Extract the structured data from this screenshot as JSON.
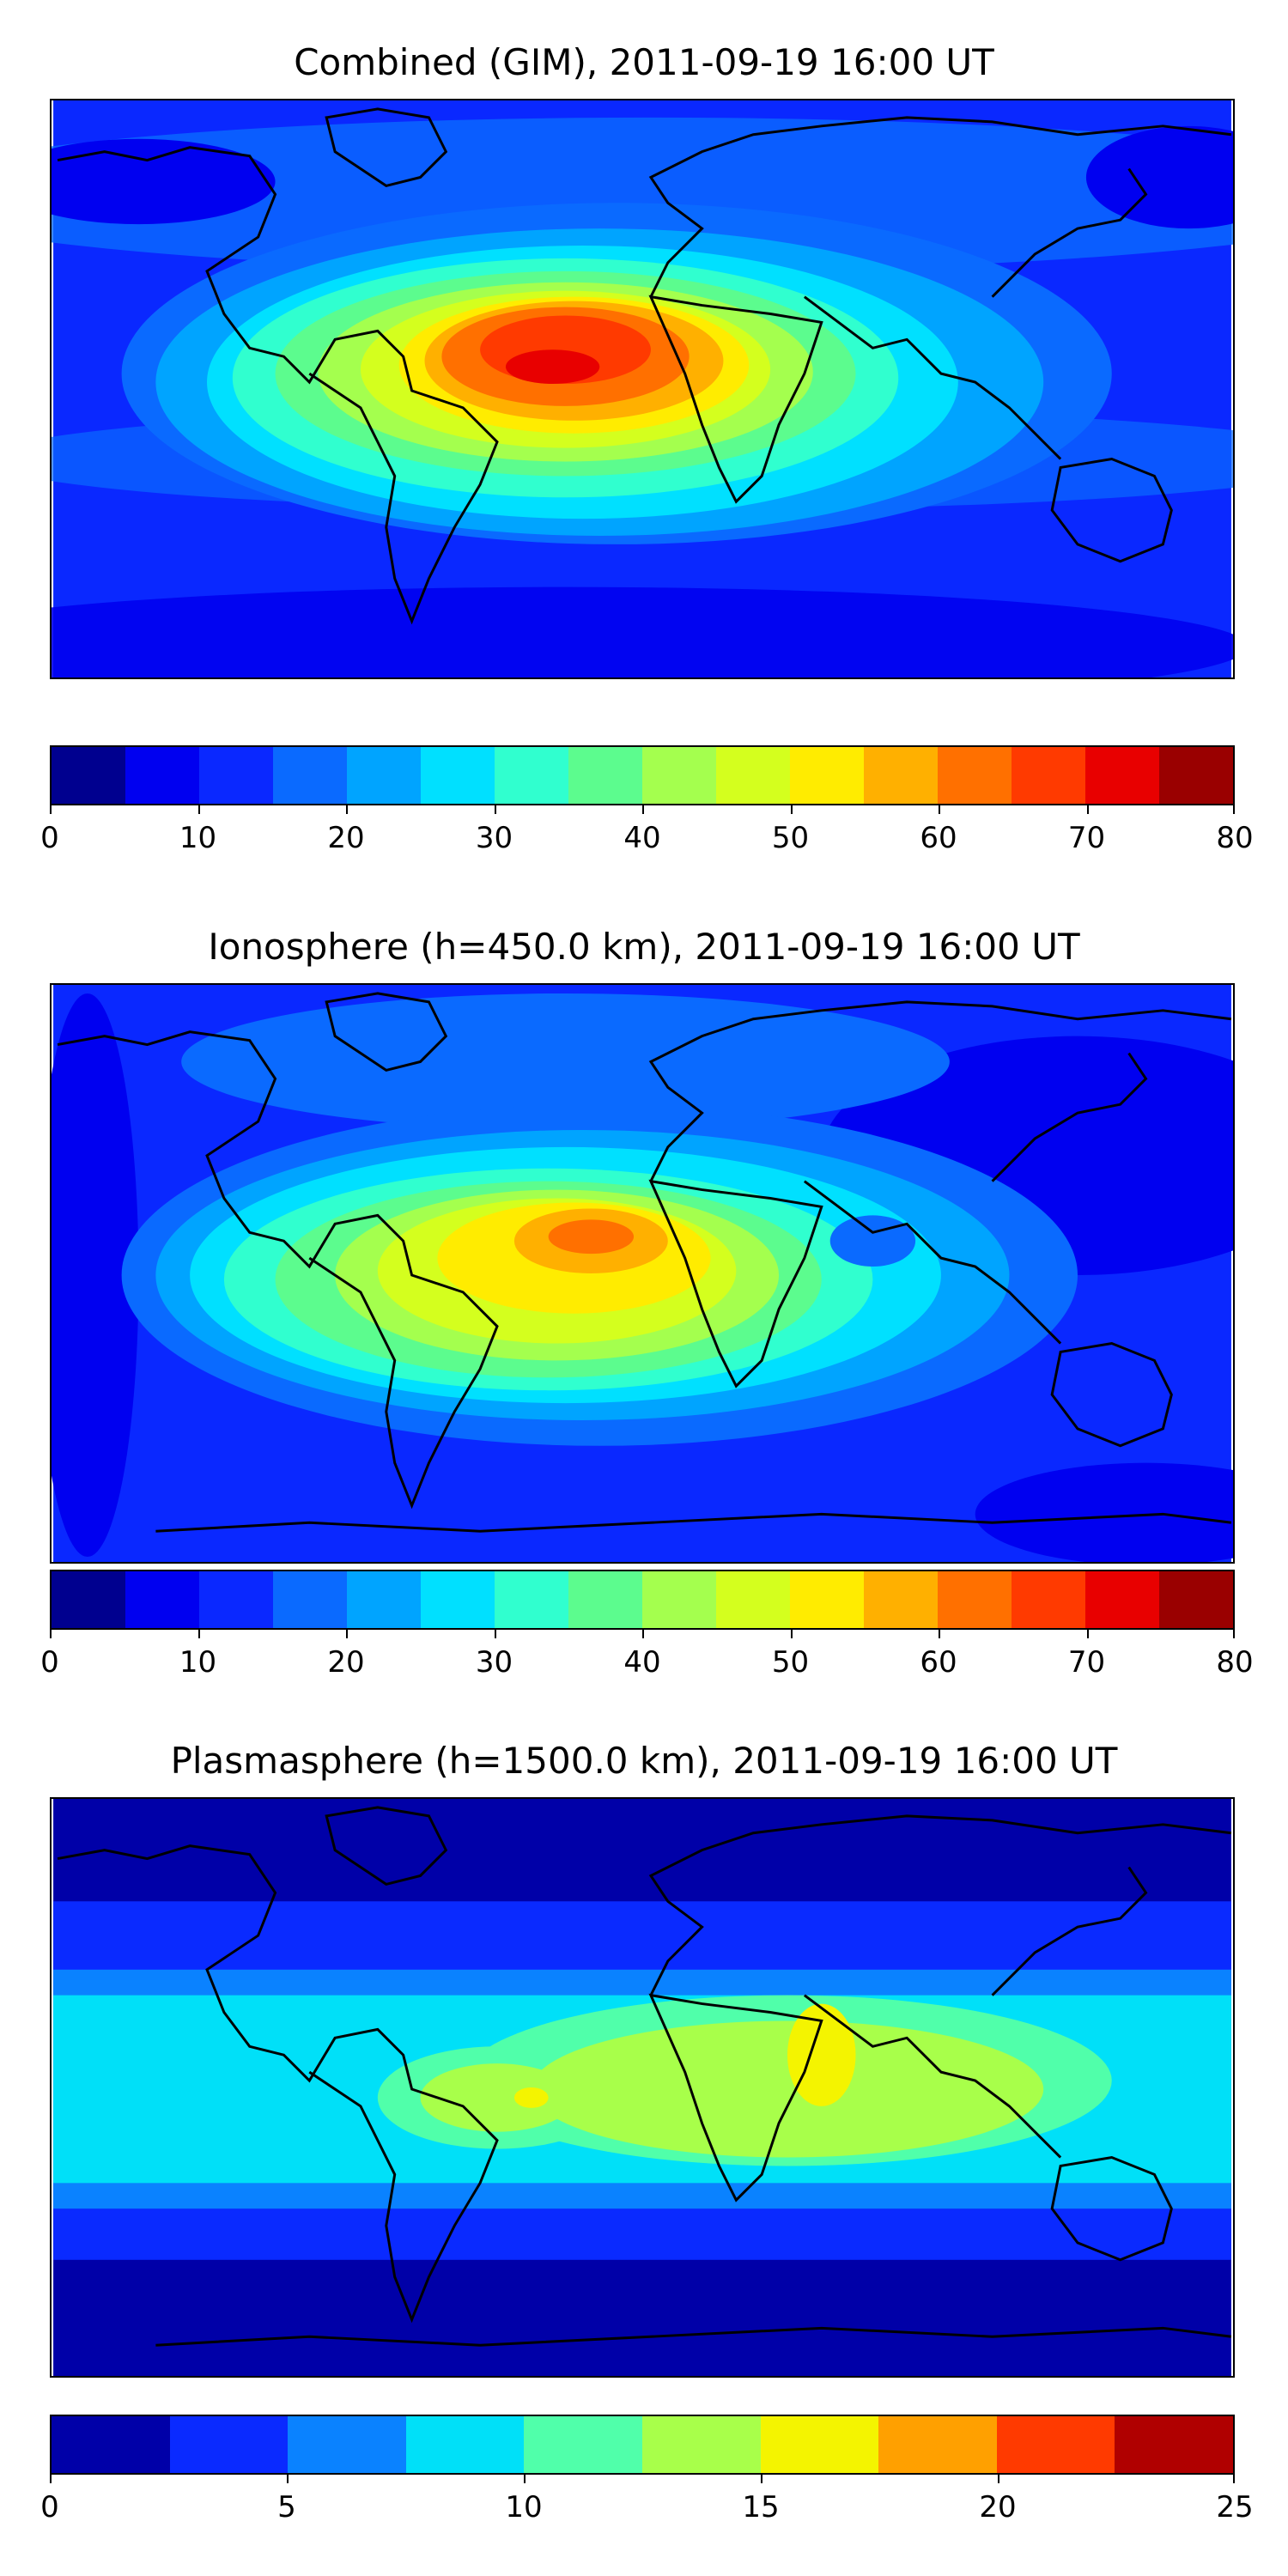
{
  "panels": [
    {
      "id": "combined",
      "title": "Combined (GIM), 2011-09-19 16:00 UT",
      "map": {
        "lon_range": [
          -180,
          180
        ],
        "lat_range": [
          -90,
          90
        ],
        "colorbar_range": [
          0,
          80
        ]
      },
      "colorbar": {
        "min": 0,
        "max": 80,
        "tick_values": [
          0,
          10,
          20,
          30,
          40,
          50,
          60,
          70,
          80
        ],
        "tick_labels": [
          "0",
          "10",
          "20",
          "30",
          "40",
          "50",
          "60",
          "70",
          "80"
        ],
        "colors": [
          "#00008f",
          "#0000f0",
          "#0a28ff",
          "#0a6aff",
          "#00a4ff",
          "#00e0ff",
          "#30ffcf",
          "#5cfc8e",
          "#a4ff4e",
          "#d4ff1e",
          "#ffec00",
          "#ffb000",
          "#ff7000",
          "#ff3a00",
          "#e80000",
          "#9a0000"
        ]
      }
    },
    {
      "id": "ionosphere",
      "title": "Ionosphere  (h=450.0 km), 2011-09-19 16:00 UT",
      "map": {
        "lon_range": [
          -180,
          180
        ],
        "lat_range": [
          -90,
          90
        ],
        "colorbar_range": [
          0,
          80
        ]
      },
      "colorbar": {
        "min": 0,
        "max": 80,
        "tick_values": [
          0,
          10,
          20,
          30,
          40,
          50,
          60,
          70,
          80
        ],
        "tick_labels": [
          "0",
          "10",
          "20",
          "30",
          "40",
          "50",
          "60",
          "70",
          "80"
        ],
        "colors": [
          "#00008f",
          "#0000f0",
          "#0a28ff",
          "#0a6aff",
          "#00a4ff",
          "#00e0ff",
          "#30ffcf",
          "#5cfc8e",
          "#a4ff4e",
          "#d4ff1e",
          "#ffec00",
          "#ffb000",
          "#ff7000",
          "#ff3a00",
          "#e80000",
          "#9a0000"
        ]
      }
    },
    {
      "id": "plasmasphere",
      "title": "Plasmasphere (h=1500.0 km), 2011-09-19 16:00 UT",
      "map": {
        "lon_range": [
          -180,
          180
        ],
        "lat_range": [
          -90,
          90
        ],
        "colorbar_range": [
          0,
          25
        ]
      },
      "colorbar": {
        "min": 0,
        "max": 25,
        "tick_values": [
          0,
          5,
          10,
          15,
          20,
          25
        ],
        "tick_labels": [
          "0",
          "5",
          "10",
          "15",
          "20",
          "25"
        ],
        "colors": [
          "#0000a8",
          "#0a2aff",
          "#0a82ff",
          "#00e0f8",
          "#50ffaa",
          "#a8ff4a",
          "#f4f400",
          "#ffa000",
          "#ff3a00",
          "#b00000"
        ]
      }
    }
  ]
}
